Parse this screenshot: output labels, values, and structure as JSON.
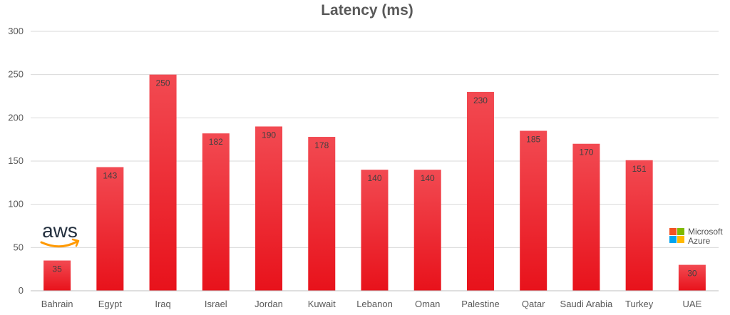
{
  "chart_data": {
    "type": "bar",
    "title": "Latency (ms)",
    "xlabel": "",
    "ylabel": "",
    "categories": [
      "Bahrain",
      "Egypt",
      "Iraq",
      "Israel",
      "Jordan",
      "Kuwait",
      "Lebanon",
      "Oman",
      "Palestine",
      "Qatar",
      "Saudi Arabia",
      "Turkey",
      "UAE"
    ],
    "values": [
      35,
      143,
      250,
      182,
      190,
      178,
      140,
      140,
      230,
      185,
      170,
      151,
      30
    ],
    "ylim": [
      0,
      300
    ],
    "yticks": [
      0,
      50,
      100,
      150,
      200,
      250,
      300
    ],
    "grid": true,
    "data_labels": true,
    "bar_color": "#e8121b",
    "bar_color_light": "#f24a52"
  },
  "logos": {
    "aws": {
      "text": "aws",
      "color": "#232f3e",
      "smile_color": "#ff9900"
    },
    "azure": {
      "line1": "Microsoft",
      "line2": "Azure",
      "colors": [
        "#f25022",
        "#7fba00",
        "#00a4ef",
        "#ffb900"
      ]
    }
  }
}
